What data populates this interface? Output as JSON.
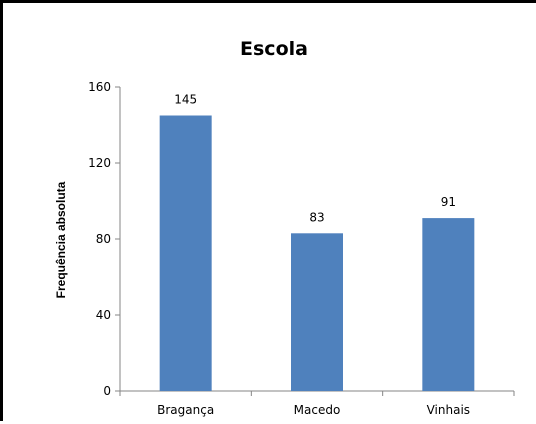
{
  "chart_data": {
    "type": "bar",
    "title": "Escola",
    "xlabel": "",
    "ylabel": "Frequência absoluta",
    "categories": [
      "Bragança",
      "Macedo",
      "Vinhais"
    ],
    "values": [
      145,
      83,
      91
    ],
    "data_labels": [
      "145",
      "83",
      "91"
    ],
    "ylim": [
      0,
      160
    ],
    "yticks": [
      0,
      40,
      80,
      120,
      160
    ],
    "bar_color": "#4f81bd",
    "grid": false,
    "legend": "none"
  }
}
